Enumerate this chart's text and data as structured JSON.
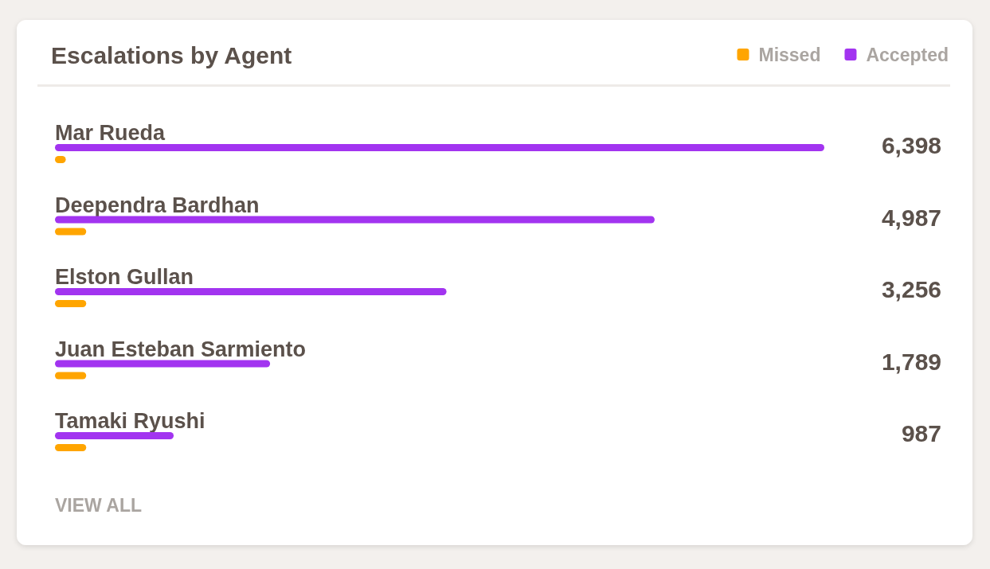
{
  "chart_data": {
    "type": "bar",
    "orientation": "horizontal",
    "title": "Escalations by Agent",
    "categories": [
      "Mar Rueda",
      "Deependra Bardhan",
      "Elston Gullan",
      "Juan Esteban Sarmiento",
      "Tamaki Ryushi"
    ],
    "series": [
      {
        "name": "Missed",
        "color": "#ffa500",
        "values": [
          90,
          260,
          260,
          260,
          260
        ]
      },
      {
        "name": "Accepted",
        "color": "#a234f0",
        "values": [
          6398,
          4987,
          3256,
          1789,
          987
        ],
        "value_labels": [
          "6,398",
          "4,987",
          "3,256",
          "1,789",
          "987"
        ]
      }
    ],
    "legend": "top right",
    "annotations": [
      "VIEW ALL"
    ]
  }
}
